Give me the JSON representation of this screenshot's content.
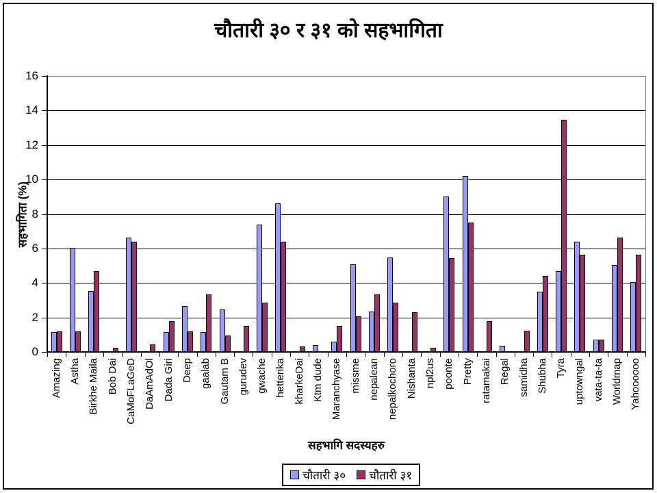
{
  "title": "चौतारी ३० र ३१ को सहभागिता",
  "chart_data": {
    "type": "bar",
    "title": "चौतारी ३० र ३१ को सहभागिता",
    "xlabel": "सहभागि सदस्यहरु",
    "ylabel": "सहभागिता (%)",
    "ylim": [
      0,
      16
    ],
    "ytick_step": 2,
    "grid": true,
    "legend_position": "bottom",
    "plot_border_color": "#808080",
    "gridline_color": "#000000",
    "categories": [
      "Amazing",
      "Astha",
      "Birkhe Maila",
      "Bob Dai",
      "CaMoFLaGeD",
      "DaAmAdOl",
      "Dada Giri",
      "Deep",
      "gaalab",
      "Gautam B",
      "gurudev",
      "gwache",
      "hetterika",
      "kharkeDai",
      "Ktm dude",
      "Maranchyase",
      "missme",
      "nepalean",
      "nepalkochoro",
      "Nishanta",
      "npl2us",
      "poonte",
      "Pretty",
      "ratamakai",
      "Regal",
      "samidha",
      "Shubha",
      "Tyra",
      "uptowngal",
      "vata-ta-ta",
      "Worldmap",
      "Yahoooooo"
    ],
    "series": [
      {
        "name": "चौतारी ३०",
        "color": "#9999FF",
        "values": [
          1.15,
          6.05,
          3.55,
          0,
          6.65,
          0,
          1.15,
          2.65,
          1.15,
          2.45,
          0,
          7.4,
          8.6,
          0,
          0.4,
          0.6,
          5.1,
          2.35,
          5.5,
          0,
          0,
          9.0,
          10.2,
          0,
          0.35,
          0,
          3.5,
          4.7,
          6.4,
          0.7,
          5.05,
          4.05
        ]
      },
      {
        "name": "चौतारी ३१",
        "color": "#993366",
        "values": [
          1.2,
          1.2,
          4.7,
          0.25,
          6.4,
          0.45,
          1.8,
          1.2,
          3.35,
          0.95,
          1.5,
          2.85,
          6.4,
          0.3,
          0,
          1.5,
          2.05,
          3.35,
          2.85,
          2.3,
          0.25,
          5.45,
          7.5,
          1.8,
          0,
          1.25,
          4.4,
          13.45,
          5.65,
          0.7,
          6.65,
          5.65
        ]
      }
    ]
  }
}
